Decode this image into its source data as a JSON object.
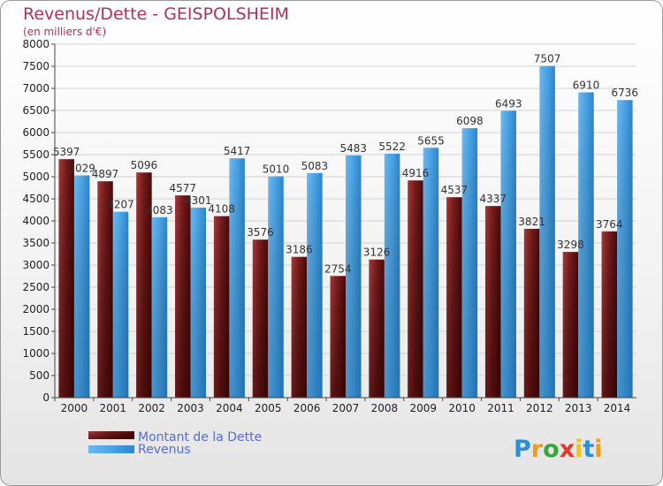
{
  "title": "Revenus/Dette - GEISPOLSHEIM",
  "subtitle": "(en milliers d'€)",
  "brand": "Proxiti",
  "colors": {
    "dette": "#6e1515",
    "revenus": "#3d9be0",
    "title": "#b03060",
    "legend_text": "#5a6cd8"
  },
  "chart_data": {
    "type": "bar",
    "categories": [
      "2000",
      "2001",
      "2002",
      "2003",
      "2004",
      "2005",
      "2006",
      "2007",
      "2008",
      "2009",
      "2010",
      "2011",
      "2012",
      "2013",
      "2014"
    ],
    "series": [
      {
        "name": "Montant de la Dette",
        "values": [
          5397,
          4897,
          5096,
          4577,
          4108,
          3576,
          3186,
          2754,
          3126,
          4916,
          4537,
          4337,
          3821,
          3298,
          3764
        ]
      },
      {
        "name": "Revenus",
        "values": [
          5029,
          4207,
          4083,
          4301,
          5417,
          5010,
          5083,
          5483,
          5522,
          5655,
          6098,
          6493,
          7507,
          6910,
          6736
        ]
      }
    ],
    "ylim": [
      0,
      8000
    ],
    "yticks": [
      0,
      500,
      1000,
      1500,
      2000,
      2500,
      3000,
      3500,
      4000,
      4500,
      5000,
      5500,
      6000,
      6500,
      7000,
      7500,
      8000
    ],
    "grid": true,
    "legend": "bottom-left"
  }
}
